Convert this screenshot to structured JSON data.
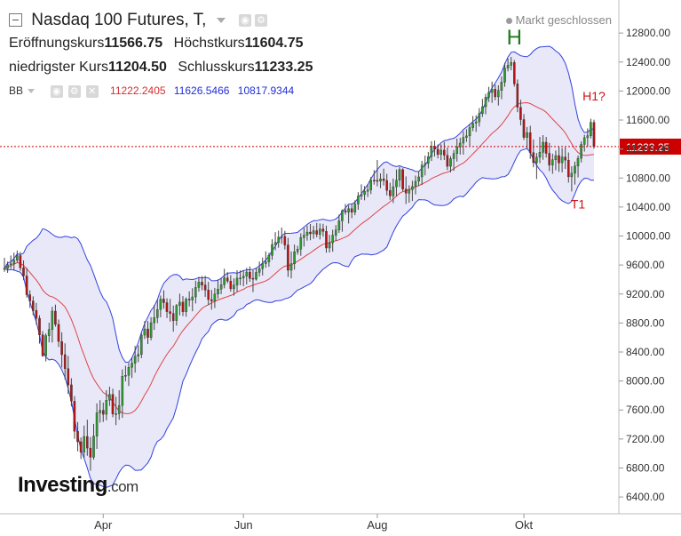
{
  "header": {
    "title": "Nasdaq 100 Futures, T,",
    "market_status": "Markt geschlossen",
    "open_label": "Eröffnungskurs",
    "open_value": "11566.75",
    "high_label": "Höchstkurs",
    "high_value": "11604.75",
    "low_label": "niedrigster Kurs",
    "low_value": "11204.50",
    "close_label": "Schlusskurs",
    "close_value": "11233.25"
  },
  "indicator": {
    "name": "BB",
    "middle": "11222.2405",
    "upper": "11626.5466",
    "lower": "10817.9344"
  },
  "logo": {
    "main": "Investing",
    "suffix": ".com"
  },
  "chart_data": {
    "type": "candlestick",
    "title": "Nasdaq 100 Futures, T,",
    "y_axis": {
      "ticks": [
        "12800.00",
        "12400.00",
        "12000.00",
        "11600.00",
        "11200.00",
        "10800.00",
        "10400.00",
        "10000.00",
        "9600.00",
        "9200.00",
        "8800.00",
        "8400.00",
        "8000.00",
        "7600.00",
        "7200.00",
        "6800.00",
        "6400.00"
      ],
      "range": [
        6350,
        13000
      ]
    },
    "x_axis": {
      "ticks": [
        "Apr",
        "Jun",
        "Aug",
        "Okt"
      ]
    },
    "last_price": "11233.25",
    "annotations": [
      {
        "text": "H",
        "color": "#1b7a1b",
        "at_value": 12470
      },
      {
        "text": "H1?",
        "color": "#cc1111",
        "at_value": 11600
      },
      {
        "text": "T1",
        "color": "#cc1111",
        "at_value": 10650
      }
    ],
    "colors": {
      "up": "#2e9b2e",
      "down": "#b81414",
      "band_fill": "#e6e6f7",
      "band_line": "#3341e0",
      "mid_line": "#e04545",
      "last_line": "#cc0000"
    },
    "ohlc": [
      [
        9541,
        9700,
        9507,
        9554
      ],
      [
        9554,
        9647,
        9492,
        9603
      ],
      [
        9603,
        9731,
        9550,
        9617
      ],
      [
        9617,
        9770,
        9521,
        9665
      ],
      [
        9665,
        9800,
        9634,
        9730
      ],
      [
        9730,
        9780,
        9520,
        9562
      ],
      [
        9562,
        9664,
        9390,
        9450
      ],
      [
        9450,
        9561,
        9151,
        9191
      ],
      [
        9191,
        9250,
        9009,
        9103
      ],
      [
        9103,
        9167,
        8906,
        8972
      ],
      [
        8972,
        9076,
        8778,
        8865
      ],
      [
        8865,
        8906,
        8516,
        8636
      ],
      [
        8636,
        8689,
        8334,
        8347
      ],
      [
        8347,
        8657,
        8270,
        8625
      ],
      [
        8625,
        8804,
        8533,
        8710
      ],
      [
        8710,
        9024,
        8531,
        8964
      ],
      [
        8964,
        9053,
        8749,
        8781
      ],
      [
        8781,
        8848,
        8469,
        8545
      ],
      [
        8545,
        8672,
        8187,
        8363
      ],
      [
        8363,
        8520,
        8021,
        8171
      ],
      [
        8171,
        8346,
        7822,
        7947
      ],
      [
        7947,
        8038,
        7648,
        7721
      ],
      [
        7721,
        7791,
        7203,
        7305
      ],
      [
        7305,
        7434,
        7030,
        7161
      ],
      [
        7161,
        7221,
        6923,
        7018
      ],
      [
        7018,
        7385,
        6943,
        7235
      ],
      [
        7235,
        7466,
        6969,
        7074
      ],
      [
        7074,
        7227,
        6762,
        6948
      ],
      [
        6948,
        7408,
        6915,
        7240
      ],
      [
        7240,
        7691,
        7064,
        7561
      ],
      [
        7561,
        7735,
        7426,
        7596
      ],
      [
        7596,
        7702,
        7435,
        7541
      ],
      [
        7541,
        7874,
        7458,
        7735
      ],
      [
        7735,
        7922,
        7656,
        7814
      ],
      [
        7814,
        7893,
        7500,
        7546
      ],
      [
        7546,
        7783,
        7391,
        7549
      ],
      [
        7549,
        7873,
        7465,
        7662
      ],
      [
        7662,
        8160,
        7491,
        8066
      ],
      [
        8066,
        8210,
        7995,
        8079
      ],
      [
        8079,
        8251,
        7931,
        8189
      ],
      [
        8189,
        8329,
        8042,
        8245
      ],
      [
        8245,
        8483,
        8115,
        8341
      ],
      [
        8341,
        8491,
        8260,
        8366
      ],
      [
        8366,
        8668,
        8315,
        8632
      ],
      [
        8632,
        8826,
        8580,
        8717
      ],
      [
        8717,
        8827,
        8510,
        8600
      ],
      [
        8600,
        8880,
        8561,
        8803
      ],
      [
        8803,
        9048,
        8706,
        8874
      ],
      [
        8874,
        9120,
        8797,
        8986
      ],
      [
        8986,
        9179,
        8879,
        9131
      ],
      [
        9131,
        9252,
        8997,
        9081
      ],
      [
        9081,
        9141,
        8869,
        8957
      ],
      [
        8957,
        9133,
        8819,
        8932
      ],
      [
        8932,
        9041,
        8681,
        8833
      ],
      [
        8833,
        9062,
        8764,
        9042
      ],
      [
        9042,
        9204,
        8907,
        9088
      ],
      [
        9088,
        9171,
        8895,
        8956
      ],
      [
        8956,
        9154,
        8887,
        9130
      ],
      [
        9130,
        9237,
        9028,
        9117
      ],
      [
        9117,
        9280,
        8962,
        9160
      ],
      [
        9160,
        9383,
        9070,
        9290
      ],
      [
        9290,
        9434,
        9232,
        9364
      ],
      [
        9364,
        9448,
        9252,
        9324
      ],
      [
        9324,
        9451,
        9160,
        9254
      ],
      [
        9254,
        9367,
        9048,
        9123
      ],
      [
        9123,
        9255,
        8984,
        9103
      ],
      [
        9103,
        9284,
        9007,
        9199
      ],
      [
        9199,
        9400,
        9138,
        9268
      ],
      [
        9268,
        9421,
        9197,
        9329
      ],
      [
        9329,
        9548,
        9278,
        9423
      ],
      [
        9423,
        9501,
        9349,
        9379
      ],
      [
        9379,
        9460,
        9232,
        9272
      ],
      [
        9272,
        9416,
        9178,
        9322
      ],
      [
        9322,
        9528,
        9230,
        9419
      ],
      [
        9419,
        9524,
        9321,
        9421
      ],
      [
        9421,
        9526,
        9307,
        9446
      ],
      [
        9446,
        9562,
        9332,
        9502
      ],
      [
        9502,
        9580,
        9368,
        9416
      ],
      [
        9416,
        9529,
        9226,
        9405
      ],
      [
        9405,
        9562,
        9385,
        9499
      ],
      [
        9499,
        9648,
        9440,
        9549
      ],
      [
        9549,
        9703,
        9455,
        9620
      ],
      [
        9620,
        9788,
        9563,
        9643
      ],
      [
        9643,
        9769,
        9576,
        9734
      ],
      [
        9734,
        9955,
        9673,
        9883
      ],
      [
        9883,
        10053,
        9803,
        9911
      ],
      [
        9911,
        10074,
        9839,
        9986
      ],
      [
        9986,
        10117,
        9894,
        9993
      ],
      [
        9993,
        10071,
        9814,
        9876
      ],
      [
        9876,
        9974,
        9436,
        9528
      ],
      [
        9528,
        9788,
        9417,
        9616
      ],
      [
        9616,
        9882,
        9536,
        9783
      ],
      [
        9783,
        9865,
        9741,
        9819
      ],
      [
        9819,
        10038,
        9727,
        9979
      ],
      [
        9979,
        10113,
        9855,
        10011
      ],
      [
        10011,
        10144,
        9936,
        10054
      ],
      [
        10054,
        10166,
        9942,
        10031
      ],
      [
        10031,
        10140,
        9962,
        10074
      ],
      [
        10074,
        10180,
        9981,
        10024
      ],
      [
        10024,
        10173,
        9953,
        10097
      ],
      [
        10097,
        10169,
        9992,
        10065
      ],
      [
        10065,
        10142,
        9769,
        9835
      ],
      [
        9835,
        10017,
        9773,
        9907
      ],
      [
        9907,
        10086,
        9784,
        10011
      ],
      [
        10011,
        10151,
        9936,
        10084
      ],
      [
        10084,
        10296,
        10042,
        10209
      ],
      [
        10209,
        10367,
        10059,
        10349
      ],
      [
        10349,
        10442,
        10295,
        10330
      ],
      [
        10330,
        10423,
        10173,
        10377
      ],
      [
        10377,
        10445,
        10246,
        10328
      ],
      [
        10328,
        10492,
        10287,
        10442
      ],
      [
        10442,
        10605,
        10362,
        10551
      ],
      [
        10551,
        10713,
        10499,
        10573
      ],
      [
        10573,
        10689,
        10493,
        10617
      ],
      [
        10617,
        10716,
        10538,
        10637
      ],
      [
        10637,
        10816,
        10578,
        10769
      ],
      [
        10769,
        10909,
        10709,
        10768
      ],
      [
        10768,
        11049,
        10685,
        10755
      ],
      [
        10755,
        10864,
        10659,
        10788
      ],
      [
        10788,
        10929,
        10697,
        10765
      ],
      [
        10765,
        10858,
        10560,
        10629
      ],
      [
        10629,
        10735,
        10499,
        10553
      ],
      [
        10553,
        10792,
        10455,
        10680
      ],
      [
        10680,
        10917,
        10552,
        10769
      ],
      [
        10769,
        10956,
        10674,
        10917
      ],
      [
        10917,
        10935,
        10617,
        10647
      ],
      [
        10647,
        10822,
        10442,
        10590
      ],
      [
        10590,
        10699,
        10460,
        10641
      ],
      [
        10641,
        10763,
        10483,
        10682
      ],
      [
        10682,
        10834,
        10574,
        10756
      ],
      [
        10756,
        10893,
        10689,
        10815
      ],
      [
        10815,
        11038,
        10702,
        10978
      ],
      [
        10978,
        11110,
        10836,
        11002
      ],
      [
        11002,
        11160,
        10931,
        11094
      ],
      [
        11094,
        11308,
        11035,
        11240
      ],
      [
        11240,
        11316,
        11096,
        11198
      ],
      [
        11198,
        11263,
        11070,
        11125
      ],
      [
        11125,
        11264,
        11046,
        11184
      ],
      [
        11184,
        11299,
        11049,
        11114
      ],
      [
        11114,
        11220,
        10909,
        10962
      ],
      [
        10962,
        11101,
        10877,
        11067
      ],
      [
        11067,
        11187,
        10900,
        11137
      ],
      [
        11137,
        11344,
        11027,
        11230
      ],
      [
        11230,
        11355,
        11123,
        11282
      ],
      [
        11282,
        11447,
        11123,
        11360
      ],
      [
        11360,
        11473,
        11298,
        11381
      ],
      [
        11381,
        11550,
        11245,
        11495
      ],
      [
        11495,
        11656,
        11447,
        11556
      ],
      [
        11556,
        11666,
        11436,
        11575
      ],
      [
        11575,
        11764,
        11510,
        11690
      ],
      [
        11690,
        11891,
        11642,
        11783
      ],
      [
        11783,
        11961,
        11679,
        11915
      ],
      [
        11915,
        12058,
        11848,
        11982
      ],
      [
        11982,
        12130,
        11837,
        12026
      ],
      [
        12026,
        12091,
        11873,
        11920
      ],
      [
        11920,
        12079,
        11800,
        12008
      ],
      [
        12008,
        12202,
        11888,
        12122
      ],
      [
        12122,
        12390,
        12059,
        12316
      ],
      [
        12316,
        12449,
        12271,
        12355
      ],
      [
        12355,
        12470,
        12286,
        12393
      ],
      [
        12393,
        12428,
        12061,
        12099
      ],
      [
        12099,
        12159,
        11708,
        11774
      ],
      [
        11774,
        11880,
        11526,
        11606
      ],
      [
        11606,
        11682,
        11325,
        11359
      ],
      [
        11359,
        11504,
        11203,
        11426
      ],
      [
        11426,
        11520,
        11065,
        11150
      ],
      [
        11150,
        11331,
        10948,
        11013
      ],
      [
        11013,
        11144,
        10786,
        11086
      ],
      [
        11086,
        11367,
        11005,
        11155
      ],
      [
        11155,
        11392,
        11052,
        11294
      ],
      [
        11294,
        11366,
        11082,
        11140
      ],
      [
        11140,
        11285,
        10896,
        10978
      ],
      [
        10978,
        11136,
        10858,
        11052
      ],
      [
        11052,
        11180,
        10907,
        11110
      ],
      [
        11110,
        11226,
        10885,
        11010
      ],
      [
        11010,
        11213,
        10879,
        11090
      ],
      [
        11090,
        11224,
        10926,
        11046
      ],
      [
        11046,
        11152,
        10737,
        10817
      ],
      [
        10817,
        10962,
        10615,
        10866
      ],
      [
        10866,
        11027,
        10710,
        10965
      ],
      [
        10965,
        11111,
        10809,
        11072
      ],
      [
        11072,
        11306,
        11014,
        11263
      ],
      [
        11263,
        11397,
        11165,
        11356
      ],
      [
        11356,
        11484,
        11231,
        11384
      ],
      [
        11384,
        11618,
        11347,
        11567
      ],
      [
        11567,
        11605,
        11205,
        11233
      ]
    ]
  }
}
